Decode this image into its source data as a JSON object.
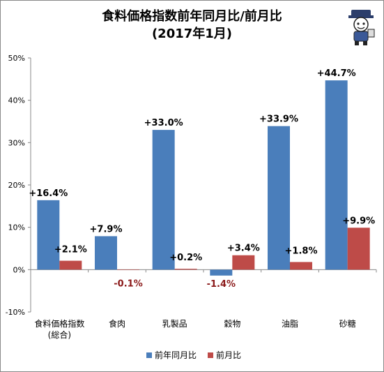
{
  "chart_data": {
    "type": "bar",
    "title": "食料価格指数前年同月比/前月比",
    "subtitle": "(2017年1月)",
    "categories": [
      [
        "食料価格指数",
        "(総合)"
      ],
      [
        "食肉"
      ],
      [
        "乳製品"
      ],
      [
        "穀物"
      ],
      [
        "油脂"
      ],
      [
        "砂糖"
      ]
    ],
    "series": [
      {
        "name": "前年同月比",
        "values": [
          16.4,
          7.9,
          33.0,
          -1.4,
          33.9,
          44.7
        ],
        "labels": [
          "+16.4%",
          "+7.9%",
          "+33.0%",
          "-1.4%",
          "+33.9%",
          "+44.7%"
        ],
        "color": "#4a7ebb"
      },
      {
        "name": "前月比",
        "values": [
          2.1,
          -0.1,
          0.2,
          3.4,
          1.8,
          9.9
        ],
        "labels": [
          "+2.1%",
          "-0.1%",
          "+0.2%",
          "+3.4%",
          "+1.8%",
          "+9.9%"
        ],
        "color": "#be4b48"
      }
    ],
    "yticks": [
      "50%",
      "40%",
      "30%",
      "20%",
      "10%",
      "0%",
      "-10%"
    ],
    "ylim": [
      -10,
      50
    ],
    "grid": false,
    "legend": "bottom",
    "negative_label_color": "#8b1a1a"
  }
}
